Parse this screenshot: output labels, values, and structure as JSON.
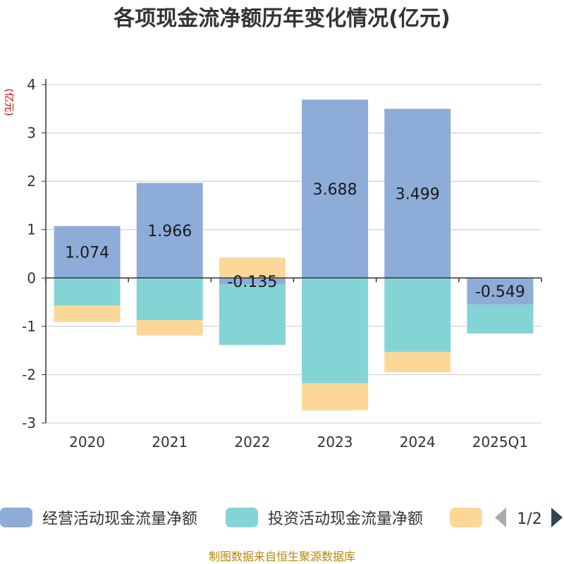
{
  "chart_data": {
    "type": "bar",
    "stacked": true,
    "title": "各项现金流净额历年变化情况(亿元)",
    "ylabel": "(亿元)",
    "xlabel": "",
    "categories": [
      "2020",
      "2021",
      "2022",
      "2023",
      "2024",
      "2025Q1"
    ],
    "ylim": [
      -3,
      4
    ],
    "yticks": [
      "4",
      "3",
      "2",
      "1",
      "0",
      "-1",
      "-2",
      "-3"
    ],
    "series": [
      {
        "name": "经营活动现金流量净额",
        "color": "#8eacd8",
        "values": [
          1.074,
          1.966,
          -0.135,
          3.688,
          3.499,
          -0.549
        ],
        "labels": [
          "1.074",
          "1.966",
          "-0.135",
          "3.688",
          "3.499",
          "-0.549"
        ]
      },
      {
        "name": "投资活动现金流量净额",
        "color": "#84d4d6",
        "values": [
          -0.57,
          -0.87,
          -1.25,
          -2.18,
          -1.53,
          -0.6
        ]
      },
      {
        "name": "",
        "color": "#fcd898",
        "values": [
          -0.34,
          -0.32,
          0.42,
          -0.56,
          -0.42,
          0.0
        ]
      }
    ],
    "legend": {
      "placement": "bottom",
      "page": "1/2"
    },
    "source": "制图数据来自恒生聚源数据库"
  }
}
